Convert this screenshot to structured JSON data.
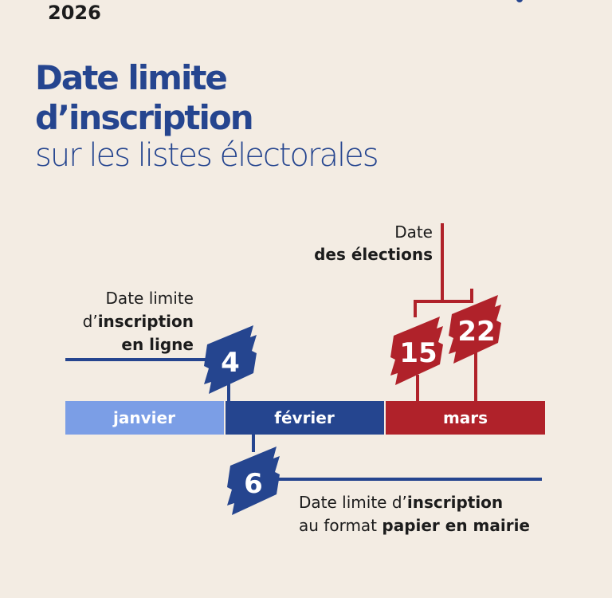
{
  "year": "2026",
  "title": {
    "line1": "Date limite",
    "line2": "d’inscription",
    "line3": "sur les listes électorales"
  },
  "colors": {
    "background": "#f3ece3",
    "blue": "#25458f",
    "light_blue": "#7b9ee6",
    "red": "#b0222a"
  },
  "months": [
    "janvier",
    "février",
    "mars"
  ],
  "online_deadline": {
    "day": "4",
    "label_line1": "Date limite",
    "label_line2_prefix": "d’",
    "label_line2_bold": "inscription",
    "label_line3": "en ligne"
  },
  "paper_deadline": {
    "day": "6",
    "label_line1_prefix": "Date limite d’",
    "label_line1_bold": "inscription",
    "label_line2_prefix": "au format ",
    "label_line2_bold": "papier en mairie"
  },
  "elections": {
    "label_line1": "Date",
    "label_line2": "des élections",
    "day1": "15",
    "day2": "22"
  }
}
